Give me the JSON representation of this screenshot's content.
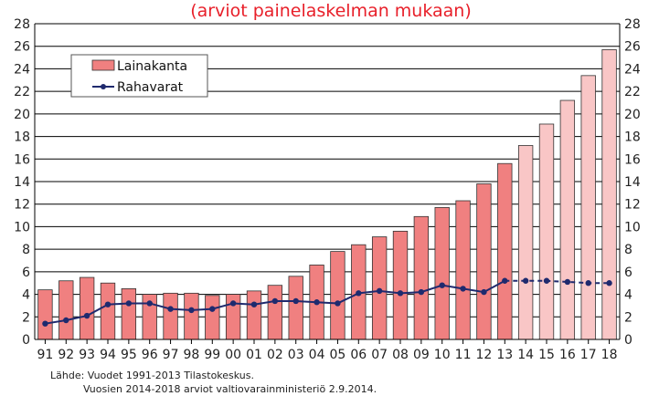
{
  "chart_data": {
    "type": "bar",
    "subtitle": "(arviot painelaskelman mukaan)",
    "categories": [
      "91",
      "92",
      "93",
      "94",
      "95",
      "96",
      "97",
      "98",
      "99",
      "00",
      "01",
      "02",
      "03",
      "04",
      "05",
      "06",
      "07",
      "08",
      "09",
      "10",
      "11",
      "12",
      "13",
      "14",
      "15",
      "16",
      "17",
      "18"
    ],
    "ylim": [
      0,
      28
    ],
    "yticks": [
      0,
      2,
      4,
      6,
      8,
      10,
      12,
      14,
      16,
      18,
      20,
      22,
      24,
      26,
      28
    ],
    "grid": true,
    "legend_position": "top-left",
    "series": [
      {
        "name": "Lainakanta",
        "type": "bar",
        "color": "#f08080",
        "forecast_color": "#f9c6c6",
        "values": [
          4.4,
          5.2,
          5.5,
          5.0,
          4.5,
          4.0,
          4.1,
          4.1,
          3.9,
          4.0,
          4.3,
          4.8,
          5.6,
          6.6,
          7.8,
          8.4,
          9.1,
          9.6,
          10.9,
          11.7,
          12.3,
          13.8,
          15.6,
          17.2,
          19.1,
          21.2,
          23.4,
          25.7
        ]
      },
      {
        "name": "Rahavarat",
        "type": "line",
        "color": "#1f2a6e",
        "values": [
          1.4,
          1.7,
          2.1,
          3.1,
          3.2,
          3.2,
          2.7,
          2.6,
          2.7,
          3.2,
          3.1,
          3.4,
          3.4,
          3.3,
          3.2,
          4.1,
          4.3,
          4.1,
          4.2,
          4.8,
          4.5,
          4.2,
          5.2,
          5.2,
          5.2,
          5.1,
          5.0,
          5.0
        ]
      }
    ],
    "forecast_start_index": 23,
    "source_lines": [
      "Lähde: Vuodet 1991-2013 Tilastokeskus.",
      "Vuosien 2014-2018 arviot valtiovarainministeriö 2.9.2014."
    ]
  }
}
